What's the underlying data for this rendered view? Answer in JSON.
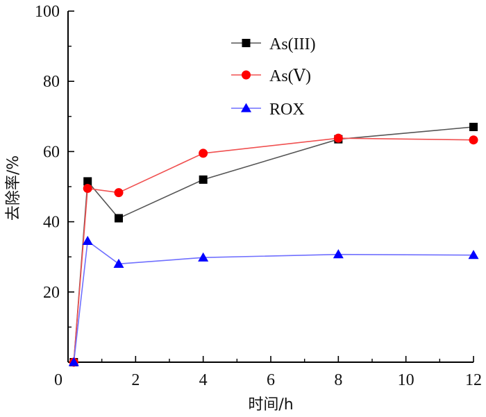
{
  "chart_data": {
    "type": "line",
    "title": "",
    "xlabel": "时间/h",
    "ylabel": "去除率/%",
    "xlim": [
      0,
      12
    ],
    "ylim": [
      0,
      100
    ],
    "x_ticks": [
      0,
      2,
      4,
      6,
      8,
      10,
      12
    ],
    "y_ticks": [
      20,
      40,
      60,
      80,
      100
    ],
    "x_tick_labels": [
      "0",
      "2",
      "4",
      "6",
      "8",
      "10",
      "12"
    ],
    "y_tick_labels": [
      "20",
      "40",
      "60",
      "80",
      "100"
    ],
    "grid": false,
    "legend_position": "top-right",
    "series": [
      {
        "name": "As(III)",
        "marker": "square",
        "color": "#555555",
        "marker_color": "#000000",
        "x": [
          0.17,
          0.58,
          1.5,
          4,
          8,
          12
        ],
        "values": [
          0,
          51.5,
          41,
          52,
          63.5,
          67
        ]
      },
      {
        "name": "As(Ⅴ)",
        "marker": "circle",
        "color": "#f05050",
        "marker_color": "#ff0000",
        "x": [
          0.17,
          0.58,
          1.5,
          4,
          8,
          12
        ],
        "values": [
          0,
          49.5,
          48.3,
          59.5,
          63.8,
          63.3
        ]
      },
      {
        "name": "ROX",
        "marker": "triangle",
        "color": "#6f6fff",
        "marker_color": "#0000ff",
        "x": [
          0.17,
          0.58,
          1.5,
          4,
          8,
          12
        ],
        "values": [
          0,
          34.5,
          28,
          29.8,
          30.7,
          30.5
        ]
      }
    ]
  }
}
